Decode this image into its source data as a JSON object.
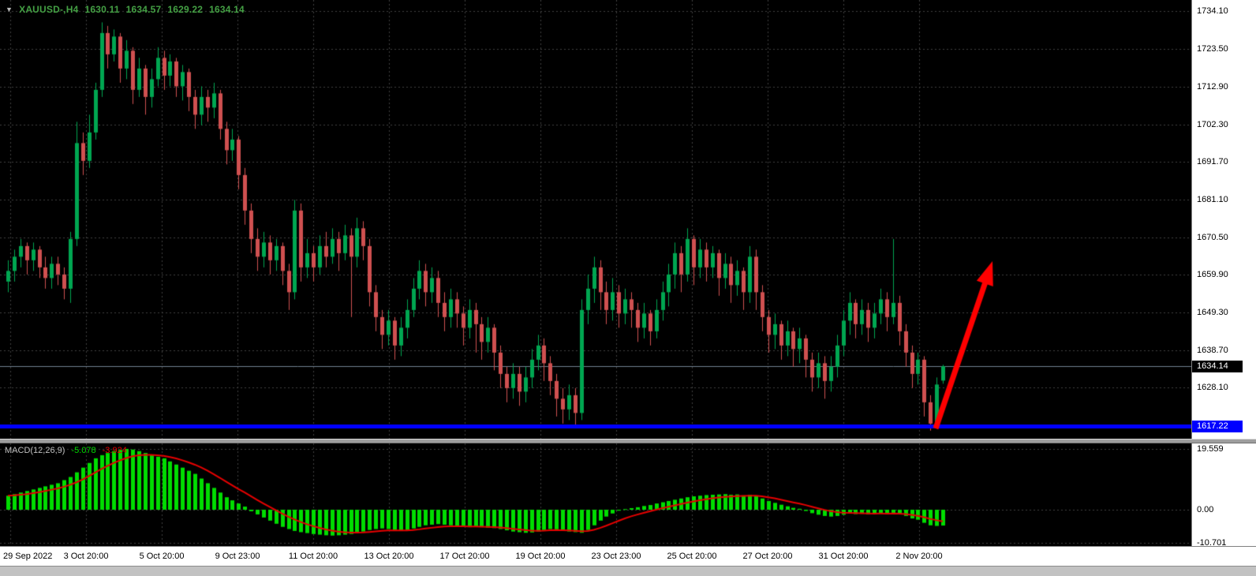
{
  "header": {
    "symbol": "XAUUSD-,H4",
    "open": "1630.11",
    "high": "1634.57",
    "low": "1629.22",
    "close": "1634.14"
  },
  "price_axis": {
    "ticks": [
      "1734.10",
      "1723.50",
      "1712.90",
      "1702.30",
      "1691.70",
      "1681.10",
      "1670.50",
      "1659.90",
      "1649.30",
      "1638.70",
      "1628.10"
    ],
    "current_price_tag": "1634.14",
    "support_price_tag": "1617.22"
  },
  "macd_panel": {
    "label": "MACD(12,26,9)",
    "macd_value": "-5.078",
    "signal_value": "-3.924",
    "ticks": [
      "19.559",
      "0.00",
      "-10.701"
    ]
  },
  "time_axis": {
    "labels": [
      "29 Sep 2022",
      "3 Oct 20:00",
      "5 Oct 20:00",
      "9 Oct 23:00",
      "11 Oct 20:00",
      "13 Oct 20:00",
      "17 Oct 20:00",
      "19 Oct 20:00",
      "23 Oct 23:00",
      "25 Oct 20:00",
      "27 Oct 20:00",
      "31 Oct 20:00",
      "2 Nov 20:00"
    ]
  },
  "colors": {
    "background": "#000000",
    "grid": "#404040",
    "bull": "#00A651",
    "bear": "#CF5050",
    "macd_bar": "#00DD00",
    "signal_line": "#E60000",
    "support_line": "#0000FF",
    "arrow": "#FF0000",
    "current_price_line": "#708090",
    "axis_bg": "#FFFFFF",
    "current_tag_bg": "#000000",
    "support_tag_bg": "#0000FF",
    "header_text": "#44A044",
    "macd_label_name": "#C0C0C0"
  },
  "chart_data": [
    {
      "type": "candlestick",
      "symbol": "XAUUSD-",
      "timeframe": "H4",
      "x_tick_labels": [
        "29 Sep 2022",
        "3 Oct 20:00",
        "5 Oct 20:00",
        "9 Oct 23:00",
        "11 Oct 20:00",
        "13 Oct 20:00",
        "17 Oct 20:00",
        "19 Oct 20:00",
        "23 Oct 23:00",
        "25 Oct 20:00",
        "27 Oct 20:00",
        "31 Oct 20:00",
        "2 Nov 20:00"
      ],
      "yticks": [
        1734.1,
        1723.5,
        1712.9,
        1702.3,
        1691.7,
        1681.1,
        1670.5,
        1659.9,
        1649.3,
        1638.7,
        1628.1
      ],
      "ylim": [
        1613.5,
        1737.3
      ],
      "last_price": 1634.14,
      "support_line": 1617.22,
      "annotations": [
        {
          "type": "arrow",
          "direction": "up-right",
          "color": "#FF0000",
          "meaning": "projected bounce from support"
        }
      ],
      "ohlc": [
        [
          1658,
          1664,
          1655,
          1661
        ],
        [
          1661,
          1667,
          1658,
          1665
        ],
        [
          1665,
          1670,
          1662,
          1668
        ],
        [
          1668,
          1669,
          1660,
          1664
        ],
        [
          1664,
          1669,
          1661,
          1667
        ],
        [
          1667,
          1668,
          1659,
          1662
        ],
        [
          1662,
          1665,
          1656,
          1659
        ],
        [
          1659,
          1665,
          1656,
          1663
        ],
        [
          1663,
          1665,
          1657,
          1660
        ],
        [
          1660,
          1662,
          1653,
          1656
        ],
        [
          1656,
          1672,
          1652,
          1670
        ],
        [
          1670,
          1703,
          1668,
          1697
        ],
        [
          1697,
          1700,
          1688,
          1692
        ],
        [
          1692,
          1705,
          1690,
          1700
        ],
        [
          1700,
          1714,
          1698,
          1712
        ],
        [
          1712,
          1731,
          1710,
          1728
        ],
        [
          1728,
          1730,
          1718,
          1722
        ],
        [
          1722,
          1729,
          1720,
          1727
        ],
        [
          1727,
          1728,
          1714,
          1718
        ],
        [
          1718,
          1726,
          1715,
          1723
        ],
        [
          1723,
          1724,
          1708,
          1712
        ],
        [
          1712,
          1721,
          1710,
          1718
        ],
        [
          1718,
          1719,
          1705,
          1710
        ],
        [
          1710,
          1718,
          1707,
          1715
        ],
        [
          1715,
          1724,
          1713,
          1721
        ],
        [
          1721,
          1723,
          1712,
          1716
        ],
        [
          1716,
          1722,
          1713,
          1720
        ],
        [
          1720,
          1721,
          1710,
          1713
        ],
        [
          1713,
          1719,
          1709,
          1717
        ],
        [
          1717,
          1718,
          1706,
          1710
        ],
        [
          1710,
          1712,
          1701,
          1705
        ],
        [
          1705,
          1713,
          1702,
          1710
        ],
        [
          1710,
          1712,
          1703,
          1707
        ],
        [
          1707,
          1714,
          1704,
          1711
        ],
        [
          1711,
          1712,
          1698,
          1701
        ],
        [
          1701,
          1703,
          1691,
          1695
        ],
        [
          1695,
          1701,
          1692,
          1698
        ],
        [
          1698,
          1699,
          1684,
          1688
        ],
        [
          1688,
          1690,
          1674,
          1678
        ],
        [
          1678,
          1680,
          1666,
          1670
        ],
        [
          1670,
          1673,
          1661,
          1665
        ],
        [
          1665,
          1672,
          1662,
          1669
        ],
        [
          1669,
          1671,
          1660,
          1664
        ],
        [
          1664,
          1670,
          1661,
          1668
        ],
        [
          1668,
          1669,
          1657,
          1661
        ],
        [
          1661,
          1663,
          1650,
          1655
        ],
        [
          1655,
          1681,
          1653,
          1678
        ],
        [
          1678,
          1680,
          1658,
          1662
        ],
        [
          1662,
          1670,
          1659,
          1666
        ],
        [
          1666,
          1668,
          1658,
          1662
        ],
        [
          1662,
          1671,
          1660,
          1668
        ],
        [
          1668,
          1672,
          1662,
          1665
        ],
        [
          1665,
          1673,
          1663,
          1670
        ],
        [
          1670,
          1672,
          1661,
          1666
        ],
        [
          1666,
          1674,
          1664,
          1671
        ],
        [
          1671,
          1673,
          1648,
          1665
        ],
        [
          1665,
          1676,
          1662,
          1673
        ],
        [
          1673,
          1675,
          1664,
          1668
        ],
        [
          1668,
          1670,
          1651,
          1655
        ],
        [
          1655,
          1657,
          1644,
          1648
        ],
        [
          1648,
          1650,
          1639,
          1643
        ],
        [
          1643,
          1650,
          1640,
          1647
        ],
        [
          1647,
          1648,
          1636,
          1640
        ],
        [
          1640,
          1648,
          1637,
          1645
        ],
        [
          1645,
          1653,
          1642,
          1650
        ],
        [
          1650,
          1659,
          1648,
          1656
        ],
        [
          1656,
          1664,
          1653,
          1661
        ],
        [
          1661,
          1663,
          1651,
          1655
        ],
        [
          1655,
          1662,
          1652,
          1659
        ],
        [
          1659,
          1661,
          1648,
          1652
        ],
        [
          1652,
          1655,
          1644,
          1648
        ],
        [
          1648,
          1656,
          1645,
          1653
        ],
        [
          1653,
          1655,
          1645,
          1649
        ],
        [
          1649,
          1651,
          1640,
          1645
        ],
        [
          1645,
          1653,
          1642,
          1650
        ],
        [
          1650,
          1652,
          1638,
          1646
        ],
        [
          1646,
          1648,
          1636,
          1641
        ],
        [
          1641,
          1648,
          1638,
          1645
        ],
        [
          1645,
          1646,
          1633,
          1638
        ],
        [
          1638,
          1640,
          1628,
          1632
        ],
        [
          1632,
          1634,
          1624,
          1628
        ],
        [
          1628,
          1635,
          1625,
          1632
        ],
        [
          1632,
          1634,
          1623,
          1627
        ],
        [
          1627,
          1634,
          1624,
          1631
        ],
        [
          1631,
          1639,
          1628,
          1636
        ],
        [
          1636,
          1643,
          1633,
          1640
        ],
        [
          1640,
          1642,
          1630,
          1635
        ],
        [
          1635,
          1637,
          1626,
          1630
        ],
        [
          1630,
          1632,
          1620,
          1625
        ],
        [
          1625,
          1628,
          1618,
          1622
        ],
        [
          1622,
          1629,
          1619,
          1626
        ],
        [
          1626,
          1628,
          1617,
          1621
        ],
        [
          1621,
          1653,
          1619,
          1650
        ],
        [
          1650,
          1660,
          1646,
          1656
        ],
        [
          1656,
          1665,
          1652,
          1662
        ],
        [
          1662,
          1664,
          1650,
          1655
        ],
        [
          1655,
          1658,
          1646,
          1650
        ],
        [
          1650,
          1659,
          1647,
          1655
        ],
        [
          1655,
          1657,
          1645,
          1649
        ],
        [
          1649,
          1656,
          1646,
          1653
        ],
        [
          1653,
          1655,
          1645,
          1650
        ],
        [
          1650,
          1652,
          1641,
          1645
        ],
        [
          1645,
          1652,
          1642,
          1649
        ],
        [
          1649,
          1650,
          1640,
          1644
        ],
        [
          1644,
          1653,
          1642,
          1650
        ],
        [
          1650,
          1658,
          1647,
          1655
        ],
        [
          1655,
          1663,
          1651,
          1660
        ],
        [
          1660,
          1669,
          1656,
          1666
        ],
        [
          1666,
          1668,
          1655,
          1660
        ],
        [
          1660,
          1673,
          1658,
          1670
        ],
        [
          1670,
          1671,
          1657,
          1662
        ],
        [
          1662,
          1670,
          1659,
          1667
        ],
        [
          1667,
          1669,
          1658,
          1662
        ],
        [
          1662,
          1668,
          1659,
          1666
        ],
        [
          1666,
          1667,
          1654,
          1659
        ],
        [
          1659,
          1666,
          1656,
          1663
        ],
        [
          1663,
          1665,
          1652,
          1657
        ],
        [
          1657,
          1664,
          1654,
          1661
        ],
        [
          1661,
          1662,
          1650,
          1655
        ],
        [
          1655,
          1668,
          1652,
          1665
        ],
        [
          1665,
          1667,
          1650,
          1655
        ],
        [
          1655,
          1657,
          1644,
          1648
        ],
        [
          1648,
          1650,
          1638,
          1643
        ],
        [
          1643,
          1649,
          1639,
          1646
        ],
        [
          1646,
          1647,
          1636,
          1640
        ],
        [
          1640,
          1647,
          1637,
          1644
        ],
        [
          1644,
          1645,
          1634,
          1639
        ],
        [
          1639,
          1645,
          1635,
          1642
        ],
        [
          1642,
          1643,
          1631,
          1636
        ],
        [
          1636,
          1638,
          1627,
          1631
        ],
        [
          1631,
          1638,
          1628,
          1635
        ],
        [
          1635,
          1637,
          1625,
          1630
        ],
        [
          1630,
          1637,
          1627,
          1634
        ],
        [
          1634,
          1643,
          1631,
          1640
        ],
        [
          1640,
          1650,
          1637,
          1647
        ],
        [
          1647,
          1655,
          1643,
          1652
        ],
        [
          1652,
          1653,
          1642,
          1646
        ],
        [
          1646,
          1653,
          1643,
          1650
        ],
        [
          1650,
          1652,
          1641,
          1645
        ],
        [
          1645,
          1652,
          1642,
          1649
        ],
        [
          1649,
          1656,
          1646,
          1653
        ],
        [
          1653,
          1655,
          1644,
          1648
        ],
        [
          1648,
          1670,
          1646,
          1652
        ],
        [
          1652,
          1654,
          1640,
          1644
        ],
        [
          1644,
          1646,
          1634,
          1638
        ],
        [
          1638,
          1640,
          1628,
          1632
        ],
        [
          1632,
          1638,
          1629,
          1636
        ],
        [
          1636,
          1637,
          1620,
          1624
        ],
        [
          1624,
          1626,
          1616,
          1618
        ],
        [
          1618,
          1631,
          1617,
          1629
        ],
        [
          1630.11,
          1634.57,
          1629.22,
          1634.14
        ]
      ]
    },
    {
      "type": "bar",
      "name": "MACD(12,26,9)",
      "current_macd": -5.078,
      "current_signal": -3.924,
      "signal_method": "EMA(9) of values, drawn as red line",
      "yticks": [
        19.559,
        0.0,
        -10.701
      ],
      "ylim": [
        -12.0,
        20.6
      ],
      "values": [
        4.5,
        5,
        5.5,
        6,
        6.5,
        7,
        7.5,
        8,
        8.5,
        9.5,
        10.5,
        12,
        13.5,
        15,
        16.5,
        17.5,
        18.2,
        18.8,
        19.2,
        19.5,
        19.3,
        18.8,
        18.2,
        17.5,
        17,
        16.5,
        15.5,
        14.5,
        13.5,
        12.5,
        11.5,
        10,
        8.5,
        7,
        5.5,
        4,
        3,
        2,
        1,
        -0.5,
        -1.5,
        -2.5,
        -3.5,
        -4.5,
        -5.5,
        -6.2,
        -6.8,
        -7.2,
        -7.5,
        -7.8,
        -8,
        -8.2,
        -8.3,
        -8.2,
        -8,
        -7.8,
        -7.5,
        -7,
        -6.5,
        -6.2,
        -6,
        -6.2,
        -6.5,
        -6.8,
        -6.5,
        -6,
        -5.5,
        -5,
        -4.8,
        -4.6,
        -4.8,
        -5,
        -5.2,
        -5.4,
        -5.6,
        -5.5,
        -5.6,
        -5.8,
        -5.9,
        -6.2,
        -6.6,
        -7,
        -7.2,
        -7.4,
        -7.3,
        -7,
        -6.5,
        -6.2,
        -6.3,
        -6.6,
        -7,
        -7.2,
        -7.4,
        -6.5,
        -5,
        -3.5,
        -2.2,
        -1.2,
        -0.3,
        0.2,
        0.5,
        0.8,
        1.2,
        1.5,
        2,
        2.4,
        2.8,
        3.2,
        3.6,
        4,
        4.3,
        4.5,
        4.7,
        4.8,
        4.9,
        5,
        4.8,
        4.9,
        4.6,
        4.8,
        4.4,
        3.6,
        2.8,
        2.2,
        1.6,
        1.1,
        0.6,
        0.3,
        -0.4,
        -1.1,
        -1.6,
        -2,
        -2.2,
        -2,
        -1.6,
        -1.2,
        -1.4,
        -1.3,
        -1.5,
        -1.4,
        -1.2,
        -1.3,
        -1,
        -1.4,
        -2,
        -2.8,
        -3.2,
        -4.2,
        -5,
        -5.2,
        -5.078
      ]
    }
  ]
}
